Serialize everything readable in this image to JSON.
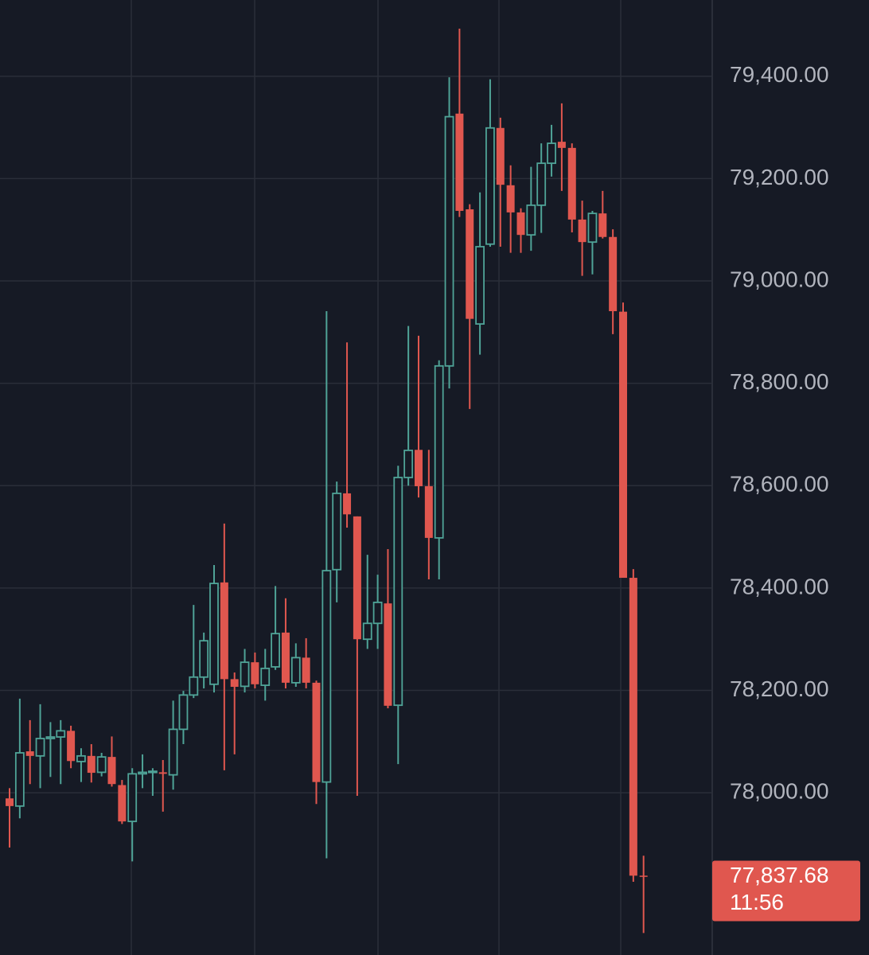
{
  "chart_data": {
    "type": "candlestick",
    "ylim": [
      77683,
      79549
    ],
    "yticks": [
      {
        "value": 78000,
        "label": "78,000.00"
      },
      {
        "value": 78200,
        "label": "78,200.00"
      },
      {
        "value": 78400,
        "label": "78,400.00"
      },
      {
        "value": 78600,
        "label": "78,600.00"
      },
      {
        "value": 78800,
        "label": "78,800.00"
      },
      {
        "value": 79000,
        "label": "79,000.00"
      },
      {
        "value": 79200,
        "label": "79,200.00"
      },
      {
        "value": 79400,
        "label": "79,400.00"
      }
    ],
    "grid": true,
    "up_color": "#4fa397",
    "down_color": "#e0574f",
    "open": [
      77989,
      77974,
      78081,
      78072,
      78106,
      78109,
      78121,
      78061,
      78072,
      78040,
      78070,
      78015,
      77944,
      78037,
      78040,
      78040,
      78035,
      78124,
      78191,
      78226,
      78212,
      78411,
      78222,
      78208,
      78255,
      78210,
      78246,
      78313,
      78215,
      78264,
      78215,
      78021,
      78436,
      78585,
      78540,
      78300,
      78331,
      78370,
      78171,
      78616,
      78670,
      78599,
      78498,
      78834,
      79327,
      79140,
      78916,
      79072,
      79299,
      79187,
      79134,
      79090,
      79148,
      79230,
      79272,
      79260,
      79120,
      79076,
      79132,
      79086,
      78940,
      78420,
      77838
    ],
    "high": [
      78009,
      78184,
      78142,
      78173,
      78138,
      78142,
      78131,
      78087,
      78095,
      78078,
      78110,
      78025,
      78048,
      78075,
      78048,
      78064,
      78180,
      78199,
      78367,
      78313,
      78445,
      78526,
      78235,
      78281,
      78274,
      78281,
      78404,
      78380,
      78292,
      78302,
      78219,
      78941,
      78608,
      78880,
      78540,
      78465,
      78426,
      78476,
      78639,
      78912,
      78893,
      78670,
      78845,
      79398,
      79493,
      79150,
      79173,
      79394,
      79319,
      79226,
      79142,
      79223,
      79269,
      79305,
      79347,
      79269,
      79157,
      79137,
      79176,
      79101,
      78958,
      78437,
      77877
    ],
    "low": [
      77893,
      77950,
      78017,
      78009,
      78031,
      78017,
      78048,
      78021,
      78020,
      78032,
      78012,
      77939,
      77866,
      78009,
      77994,
      77963,
      78006,
      78095,
      78185,
      78204,
      78196,
      78044,
      78075,
      78196,
      78204,
      78180,
      78240,
      78204,
      78207,
      78204,
      77978,
      77872,
      78372,
      78518,
      77994,
      78281,
      78281,
      78165,
      78056,
      78600,
      78577,
      78417,
      78417,
      78790,
      79125,
      78750,
      78856,
      79067,
      79067,
      79055,
      79055,
      79059,
      79094,
      79204,
      79176,
      79095,
      79010,
      79013,
      79083,
      78896,
      78420,
      77826,
      77726
    ],
    "close": [
      77974,
      78078,
      78072,
      78106,
      78109,
      78121,
      78062,
      78072,
      78039,
      78070,
      78017,
      77944,
      78037,
      78040,
      78042,
      78037,
      78124,
      78191,
      78226,
      78297,
      78409,
      78222,
      78207,
      78255,
      78212,
      78243,
      78311,
      78215,
      78264,
      78215,
      78021,
      78434,
      78585,
      78544,
      78300,
      78331,
      78372,
      78170,
      78616,
      78669,
      78599,
      78498,
      78834,
      79321,
      79137,
      78926,
      79067,
      79299,
      79188,
      79134,
      79090,
      79148,
      79230,
      79269,
      79260,
      79120,
      79076,
      79132,
      79086,
      78941,
      78420,
      77838,
      77837.68
    ],
    "last_price": {
      "value": 77837.68,
      "label": "77,837.68"
    },
    "countdown": "11:56"
  }
}
